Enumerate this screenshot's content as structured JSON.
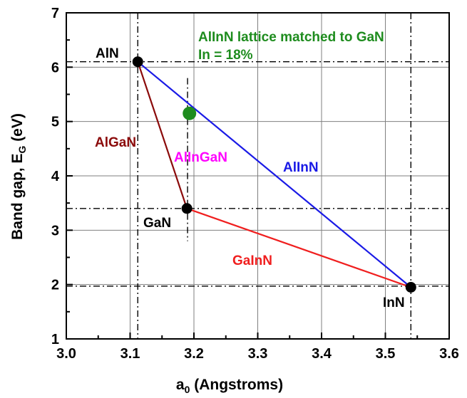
{
  "chart_data": {
    "type": "scatter",
    "xlabel": {
      "main": "a",
      "sub": "0",
      "rest": " (Angstroms)"
    },
    "ylabel": {
      "main": "Band gap, E",
      "sub": "G",
      "rest": " (eV)"
    },
    "xlim": [
      3.0,
      3.6
    ],
    "ylim": [
      1,
      7
    ],
    "xticks": [
      3.0,
      3.1,
      3.2,
      3.3,
      3.4,
      3.5,
      3.6
    ],
    "yticks": [
      1,
      2,
      3,
      4,
      5,
      6,
      7
    ],
    "xtick_labels": [
      "3.0",
      "3.1",
      "3.2",
      "3.3",
      "3.4",
      "3.5",
      "3.6"
    ],
    "ytick_labels": [
      "1",
      "2",
      "3",
      "4",
      "5",
      "6",
      "7"
    ],
    "grid": true,
    "points": [
      {
        "id": "aln",
        "label": "AlN",
        "x": 3.112,
        "y": 6.1,
        "color": "#000000"
      },
      {
        "id": "gan",
        "label": "GaN",
        "x": 3.189,
        "y": 3.4,
        "color": "#000000"
      },
      {
        "id": "inn",
        "label": "InN",
        "x": 3.54,
        "y": 1.95,
        "color": "#000000"
      },
      {
        "id": "match",
        "label": "",
        "x": 3.193,
        "y": 5.15,
        "color": "#1e8c1e"
      }
    ],
    "lines": [
      {
        "id": "algan",
        "label": "AlGaN",
        "from": "aln",
        "to": "gan",
        "color": "#8b0a0a"
      },
      {
        "id": "alinn",
        "label": "AlInN",
        "from": "aln",
        "to": "inn",
        "color": "#1a1ae6"
      },
      {
        "id": "ganinn",
        "label": "GaInN",
        "from": "gan",
        "to": "inn",
        "color": "#f01e1e"
      }
    ],
    "reference_lines": {
      "vertical": [
        3.112,
        3.19,
        3.54
      ],
      "horizontal": [
        6.1,
        3.4,
        1.97
      ]
    },
    "annotations": {
      "region": {
        "text": "AlInGaN",
        "color": "#ff00ff"
      },
      "matched_title": "AlInN lattice matched to GaN",
      "matched_in": "In = 18%",
      "matched_color": "#1e8c1e"
    }
  }
}
